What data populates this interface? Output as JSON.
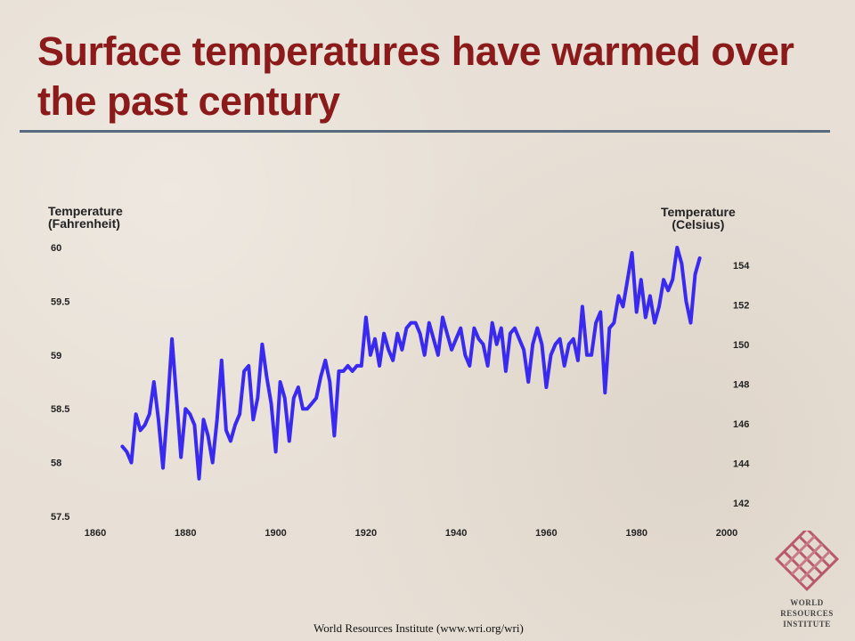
{
  "title": "Surface temperatures have warmed over the past century",
  "credit": "World Resources Institute (www.wri.org/wri)",
  "logo": {
    "lines": [
      "WORLD",
      "RESOURCES",
      "INSTITUTE"
    ]
  },
  "colors": {
    "title": "#8b1a1a",
    "line": "#3a2af0",
    "rule": "#586a80"
  },
  "chart_data": {
    "type": "line",
    "ylabel_left": [
      "Temperature",
      "(Fahrenheit)"
    ],
    "ylabel_right": [
      "Temperature",
      "(Celsius)"
    ],
    "xlim": [
      1860,
      2000
    ],
    "ylim_left": [
      57.5,
      60
    ],
    "ylim_right": [
      142,
      154
    ],
    "x_ticks": [
      "1860",
      "1880",
      "1900",
      "1920",
      "1940",
      "1960",
      "1980",
      "2000"
    ],
    "y_ticks_left": [
      "60",
      "59.5",
      "59",
      "58.5",
      "58",
      "57.5"
    ],
    "y_ticks_right": [
      "154",
      "152",
      "150",
      "148",
      "146",
      "144",
      "142"
    ],
    "grid": false,
    "series": [
      {
        "x": [
          1866,
          1867,
          1868,
          1869,
          1870,
          1871,
          1872,
          1873,
          1874,
          1875,
          1876,
          1877,
          1878,
          1879,
          1880,
          1881,
          1882,
          1883,
          1884,
          1885,
          1886,
          1887,
          1888,
          1889,
          1890,
          1891,
          1892,
          1893,
          1894,
          1895,
          1896,
          1897,
          1898,
          1899,
          1900,
          1901,
          1902,
          1903,
          1904,
          1905,
          1906,
          1907,
          1908,
          1909,
          1910,
          1911,
          1912,
          1913,
          1914,
          1915,
          1916,
          1917,
          1918,
          1919,
          1920,
          1921,
          1922,
          1923,
          1924,
          1925,
          1926,
          1927,
          1928,
          1929,
          1930,
          1931,
          1932,
          1933,
          1934,
          1935,
          1936,
          1937,
          1938,
          1939,
          1940,
          1941,
          1942,
          1943,
          1944,
          1945,
          1946,
          1947,
          1948,
          1949,
          1950,
          1951,
          1952,
          1953,
          1954,
          1955,
          1956,
          1957,
          1958,
          1959,
          1960,
          1961,
          1962,
          1963,
          1964,
          1965,
          1966,
          1967,
          1968,
          1969,
          1970,
          1971,
          1972,
          1973,
          1974,
          1975,
          1976,
          1977,
          1978,
          1979,
          1980,
          1981,
          1982,
          1983,
          1984,
          1985,
          1986,
          1987,
          1988,
          1989,
          1990,
          1991,
          1992,
          1993,
          1994
        ],
        "values": [
          58.15,
          58.1,
          58.0,
          58.45,
          58.3,
          58.35,
          58.45,
          58.75,
          58.4,
          57.95,
          58.5,
          59.15,
          58.6,
          58.05,
          58.5,
          58.45,
          58.35,
          57.85,
          58.4,
          58.25,
          58.0,
          58.4,
          58.95,
          58.3,
          58.2,
          58.35,
          58.45,
          58.85,
          58.9,
          58.4,
          58.6,
          59.1,
          58.8,
          58.55,
          58.1,
          58.75,
          58.6,
          58.2,
          58.6,
          58.7,
          58.5,
          58.5,
          58.55,
          58.6,
          58.8,
          58.95,
          58.75,
          58.25,
          58.85,
          58.85,
          58.9,
          58.85,
          58.9,
          58.9,
          59.35,
          59.0,
          59.15,
          58.9,
          59.2,
          59.05,
          58.95,
          59.2,
          59.05,
          59.25,
          59.3,
          59.3,
          59.2,
          59.0,
          59.3,
          59.15,
          59.0,
          59.35,
          59.2,
          59.05,
          59.15,
          59.25,
          59.0,
          58.9,
          59.25,
          59.15,
          59.1,
          58.9,
          59.3,
          59.1,
          59.25,
          58.85,
          59.2,
          59.25,
          59.15,
          59.05,
          58.75,
          59.1,
          59.25,
          59.1,
          58.7,
          59.0,
          59.1,
          59.15,
          58.9,
          59.1,
          59.15,
          58.95,
          59.45,
          59.0,
          59.0,
          59.3,
          59.4,
          58.65,
          59.25,
          59.3,
          59.55,
          59.45,
          59.7,
          59.95,
          59.4,
          59.7,
          59.35,
          59.55,
          59.3,
          59.45,
          59.7,
          59.6,
          59.7,
          60.0,
          59.85,
          59.5,
          59.3,
          59.75,
          59.9
        ]
      }
    ]
  }
}
